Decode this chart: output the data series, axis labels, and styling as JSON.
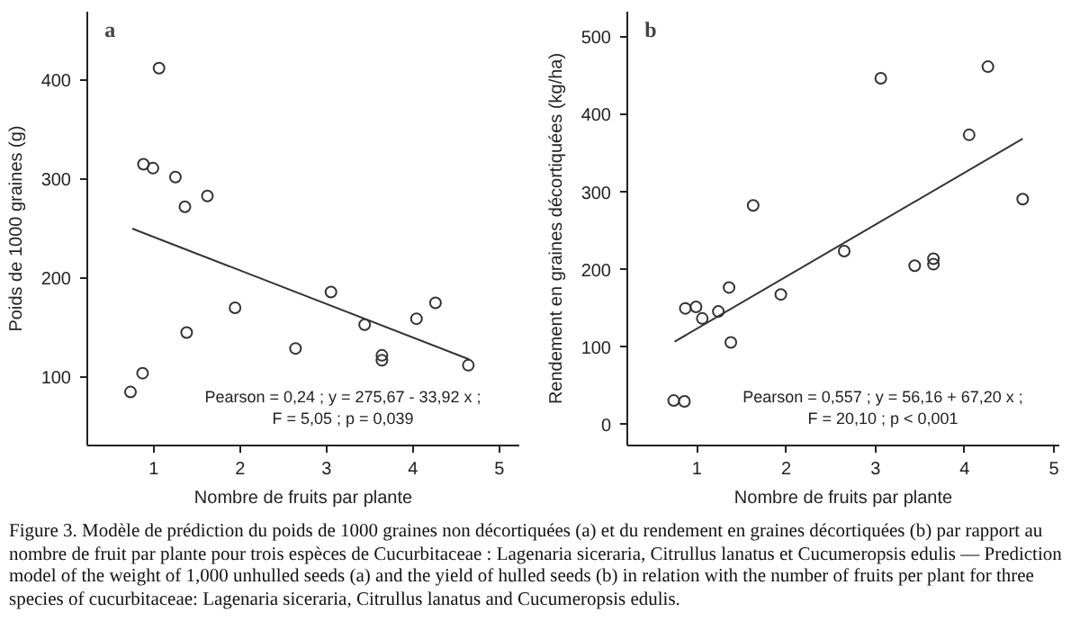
{
  "chart_data": [
    {
      "type": "scatter",
      "title": "a",
      "xlabel": "Nombre de fruits par plante",
      "ylabel": "Poids de 1000 graines (g)",
      "xlim": [
        0.23,
        5.23
      ],
      "ylim": [
        31,
        469
      ],
      "xticks": [
        1,
        2,
        3,
        4,
        5
      ],
      "yticks": [
        100,
        200,
        300,
        400
      ],
      "grid": false,
      "series": [
        {
          "type": "scatter",
          "marker": "circle",
          "color": "#333333",
          "x": [
            0.73,
            0.87,
            0.88,
            0.99,
            1.06,
            1.25,
            1.36,
            1.38,
            1.62,
            1.94,
            2.64,
            3.05,
            3.44,
            3.64,
            3.64,
            4.04,
            4.26,
            4.64
          ],
          "values": [
            85,
            104,
            315,
            311,
            412,
            302,
            272,
            145,
            283,
            170,
            129,
            186,
            153,
            122,
            117,
            159,
            175,
            112
          ]
        },
        {
          "type": "line",
          "color": "#333333",
          "x": [
            0.75,
            4.65
          ],
          "values": [
            250,
            118
          ]
        }
      ],
      "annotations": [
        "Pearson = 0,24 ; y = 275,67 - 33,92 x ;",
        "F = 5,05 ; p = 0,039",
        "Figure 3. Modèle de prédiction du poids de 1000 graines non décortiquées (a) et du rendement en graines décortiquées (b) par rapport au nombre de fruit par plante pour trois espèces de Cucurbitaceae : Lagenaria siceraria, Citrullus lanatus et Cucumeropsis edulis — Prediction model of the weight of 1,000 unhulled seeds (a) and the yield of hulled seeds (b) in relation with the number of fruits per plant for three species of cucurbitaceae: Lagenaria siceraria, Citrullus lanatus and Cucumeropsis edulis."
      ]
    },
    {
      "type": "scatter",
      "title": "b",
      "xlabel": "Nombre de fruits par plante",
      "ylabel": "Rendement en graines décortiquées (kg/ha)",
      "xlim": [
        0.22,
        5.06
      ],
      "ylim": [
        -27,
        533
      ],
      "xticks": [
        1,
        2,
        3,
        4,
        5
      ],
      "yticks": [
        0,
        100,
        200,
        300,
        400,
        500
      ],
      "grid": false,
      "series": [
        {
          "type": "scatter",
          "marker": "circle",
          "color": "#333333",
          "x": [
            0.74,
            0.86,
            0.87,
            0.99,
            1.06,
            1.24,
            1.36,
            1.38,
            1.63,
            1.94,
            2.65,
            3.06,
            3.44,
            3.65,
            3.65,
            4.05,
            4.26,
            4.65
          ],
          "values": [
            31,
            30,
            150,
            152,
            137,
            146,
            177,
            106,
            283,
            168,
            224,
            447,
            205,
            214,
            207,
            374,
            462,
            291
          ]
        },
        {
          "type": "line",
          "color": "#333333",
          "x": [
            0.75,
            4.65
          ],
          "values": [
            107,
            369
          ]
        }
      ],
      "annotations": [
        "Pearson = 0,557 ; y = 56,16 + 67,20 x ;",
        "F = 20,10 ; p < 0,001"
      ]
    }
  ]
}
